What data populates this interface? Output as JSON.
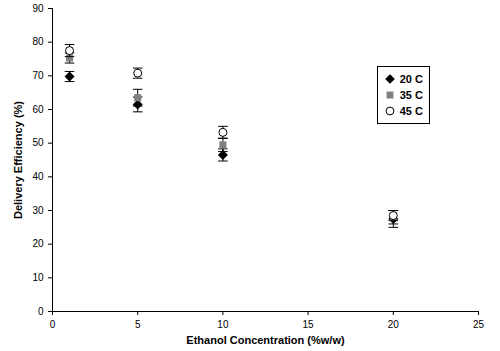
{
  "chart_data": {
    "type": "scatter",
    "x_label": "Ethanol Concentration (%w/w)",
    "y_label": "Delivery Efficiency (%)",
    "x": [
      1,
      5,
      10,
      20
    ],
    "series": [
      {
        "name": "20 C",
        "color": "#000000",
        "marker": "diamond",
        "values": [
          69.8,
          61.5,
          46.5,
          27.5
        ],
        "errors": [
          1.5,
          2.2,
          1.8,
          2.5
        ]
      },
      {
        "name": "35 C",
        "color": "#808080",
        "marker": "square",
        "values": [
          75.3,
          63.5,
          49.5,
          28.0
        ],
        "errors": [
          1.5,
          2.5,
          2.0,
          2.0
        ]
      },
      {
        "name": "45 C",
        "color": "#000000",
        "marker": "circle-open",
        "values": [
          77.5,
          70.8,
          53.2,
          28.5
        ],
        "errors": [
          1.8,
          1.5,
          1.8,
          1.5
        ]
      }
    ],
    "xlim": [
      0,
      25
    ],
    "xticks": [
      0,
      5,
      10,
      15,
      20,
      25
    ],
    "ylim": [
      0,
      90
    ],
    "yticks": [
      0,
      10,
      20,
      30,
      40,
      50,
      60,
      70,
      80,
      90
    ],
    "grid": false,
    "legend": "right"
  }
}
